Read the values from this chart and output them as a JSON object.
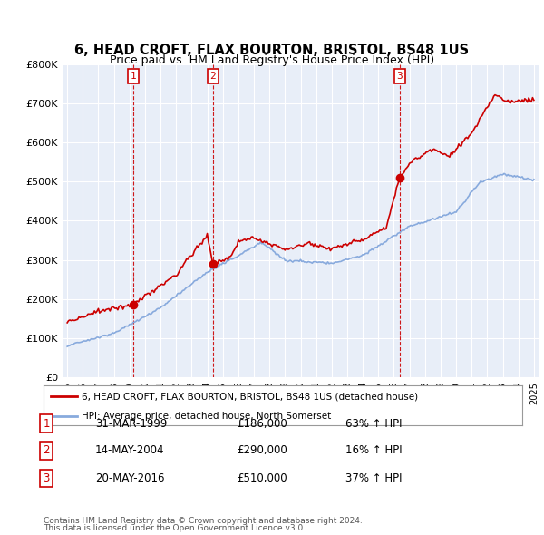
{
  "title": "6, HEAD CROFT, FLAX BOURTON, BRISTOL, BS48 1US",
  "subtitle": "Price paid vs. HM Land Registry's House Price Index (HPI)",
  "ylim": [
    0,
    800000
  ],
  "yticks": [
    0,
    100000,
    200000,
    300000,
    400000,
    500000,
    600000,
    700000,
    800000
  ],
  "ytick_labels": [
    "£0",
    "£100K",
    "£200K",
    "£300K",
    "£400K",
    "£500K",
    "£600K",
    "£700K",
    "£800K"
  ],
  "background_color": "#ffffff",
  "plot_bg_color": "#e8eef8",
  "grid_color": "#ffffff",
  "legend_label_red": "6, HEAD CROFT, FLAX BOURTON, BRISTOL, BS48 1US (detached house)",
  "legend_label_blue": "HPI: Average price, detached house, North Somerset",
  "sale_markers": [
    {
      "date": 1999.25,
      "price": 186000,
      "label": "1"
    },
    {
      "date": 2004.37,
      "price": 290000,
      "label": "2"
    },
    {
      "date": 2016.38,
      "price": 510000,
      "label": "3"
    }
  ],
  "table_rows": [
    [
      "1",
      "31-MAR-1999",
      "£186,000",
      "63% ↑ HPI"
    ],
    [
      "2",
      "14-MAY-2004",
      "£290,000",
      "16% ↑ HPI"
    ],
    [
      "3",
      "20-MAY-2016",
      "£510,000",
      "37% ↑ HPI"
    ]
  ],
  "footnote1": "Contains HM Land Registry data © Crown copyright and database right 2024.",
  "footnote2": "This data is licensed under the Open Government Licence v3.0.",
  "red_color": "#cc0000",
  "blue_color": "#88aadd",
  "xmin": 1995,
  "xmax": 2025
}
